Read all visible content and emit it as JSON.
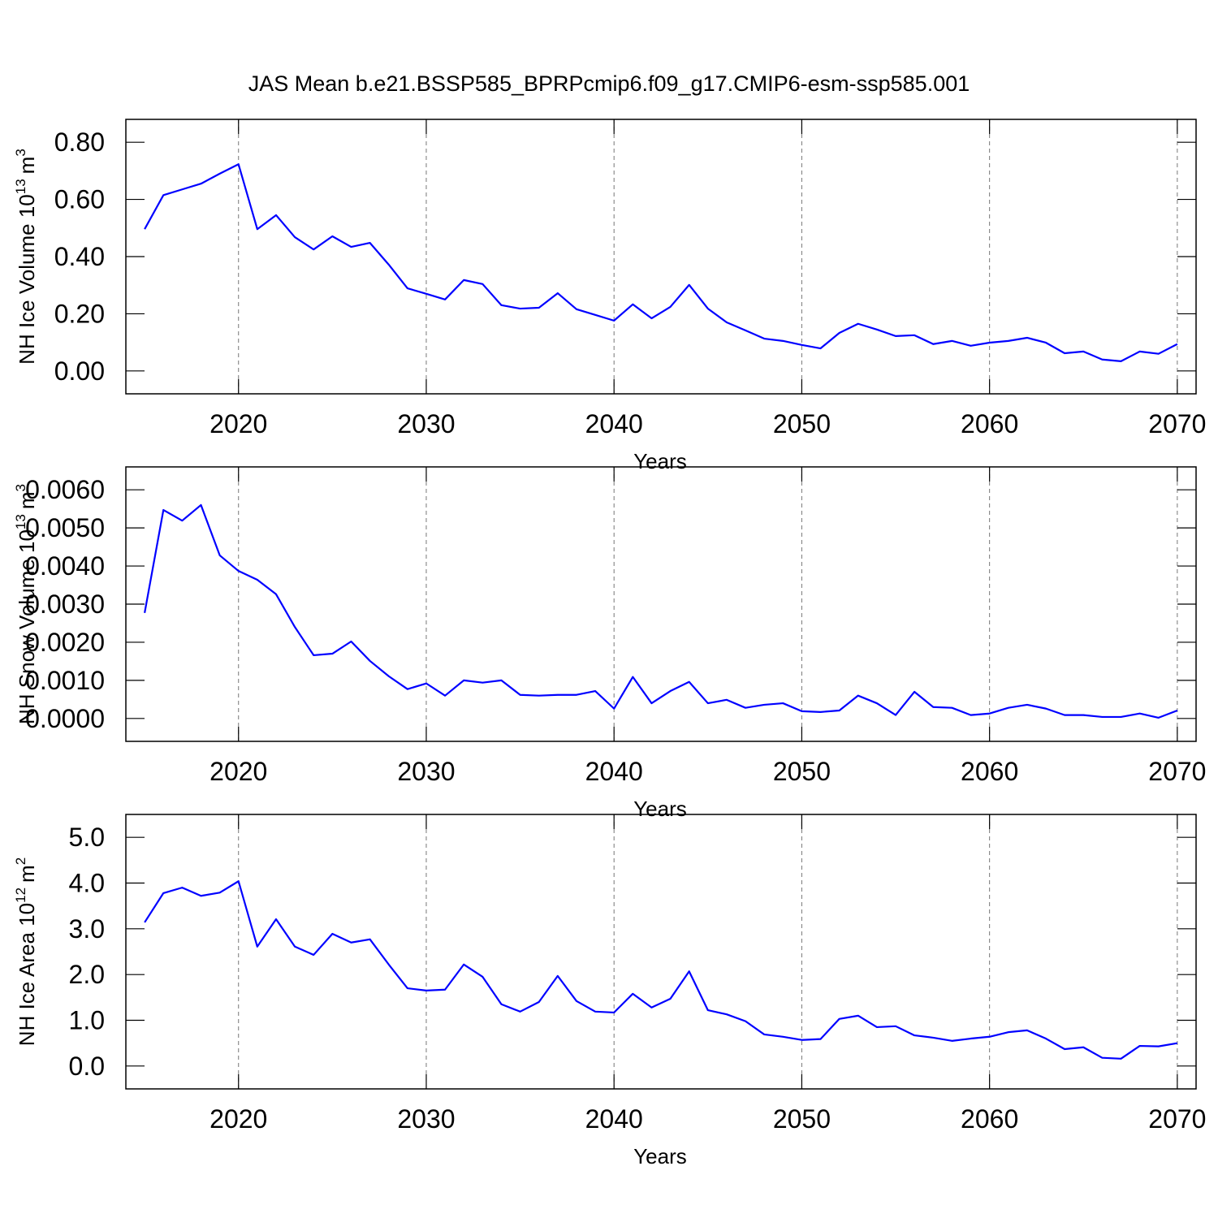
{
  "chart_data": [
    {
      "type": "line",
      "title": "JAS Mean b.e21.BSSP585_BPRPcmip6.f09_g17.CMIP6-esm-ssp585.001",
      "ylabel": "NH Ice Volume 10",
      "ylabel_exp": "13",
      "ylabel_unit": "m",
      "ylabel_unit_exp": "3",
      "xlabel": "Years",
      "x": [
        2015,
        2016,
        2017,
        2018,
        2019,
        2020,
        2021,
        2022,
        2023,
        2024,
        2025,
        2026,
        2027,
        2028,
        2029,
        2030,
        2031,
        2032,
        2033,
        2034,
        2035,
        2036,
        2037,
        2038,
        2039,
        2040,
        2041,
        2042,
        2043,
        2044,
        2045,
        2046,
        2047,
        2048,
        2049,
        2050,
        2051,
        2052,
        2053,
        2054,
        2055,
        2056,
        2057,
        2058,
        2059,
        2060,
        2061,
        2062,
        2063,
        2064,
        2065,
        2066,
        2067,
        2068,
        2069,
        2070
      ],
      "series": [
        {
          "color": "#0000ff",
          "values": [
            0.496,
            0.615,
            0.635,
            0.655,
            0.69,
            0.723,
            0.496,
            0.545,
            0.468,
            0.425,
            0.471,
            0.434,
            0.448,
            0.372,
            0.289,
            0.27,
            0.25,
            0.318,
            0.304,
            0.23,
            0.218,
            0.221,
            0.272,
            0.216,
            0.196,
            0.176,
            0.233,
            0.184,
            0.224,
            0.301,
            0.218,
            0.17,
            0.142,
            0.113,
            0.105,
            0.091,
            0.079,
            0.133,
            0.165,
            0.145,
            0.122,
            0.125,
            0.094,
            0.105,
            0.088,
            0.099,
            0.105,
            0.116,
            0.099,
            0.062,
            0.068,
            0.04,
            0.034,
            0.068,
            0.06,
            0.094
          ]
        }
      ],
      "xlim": [
        2014,
        2071
      ],
      "ylim": [
        -0.08,
        0.88
      ],
      "xticks": [
        2020,
        2030,
        2040,
        2050,
        2060,
        2070
      ],
      "yticks": [
        {
          "value": 0,
          "label": "0.00"
        },
        {
          "value": 0.2,
          "label": "0.20"
        },
        {
          "value": 0.4,
          "label": "0.40"
        },
        {
          "value": 0.6,
          "label": "0.60"
        },
        {
          "value": 0.8,
          "label": "0.80"
        }
      ],
      "grid": true
    },
    {
      "type": "line",
      "ylabel": "NH Snow Volume 10",
      "ylabel_exp": "13",
      "ylabel_unit": "m",
      "ylabel_unit_exp": "3",
      "xlabel": "Years",
      "x": [
        2015,
        2016,
        2017,
        2018,
        2019,
        2020,
        2021,
        2022,
        2023,
        2024,
        2025,
        2026,
        2027,
        2028,
        2029,
        2030,
        2031,
        2032,
        2033,
        2034,
        2035,
        2036,
        2037,
        2038,
        2039,
        2040,
        2041,
        2042,
        2043,
        2044,
        2045,
        2046,
        2047,
        2048,
        2049,
        2050,
        2051,
        2052,
        2053,
        2054,
        2055,
        2056,
        2057,
        2058,
        2059,
        2060,
        2061,
        2062,
        2063,
        2064,
        2065,
        2066,
        2067,
        2068,
        2069,
        2070
      ],
      "series": [
        {
          "color": "#0000ff",
          "values": [
            0.00277,
            0.00547,
            0.00519,
            0.0056,
            0.00428,
            0.00387,
            0.00364,
            0.00326,
            0.0024,
            0.00166,
            0.0017,
            0.00202,
            0.00151,
            0.00111,
            0.00077,
            0.00092,
            0.0006,
            0.001,
            0.00094,
            0.001,
            0.00062,
            0.0006,
            0.00062,
            0.00062,
            0.00072,
            0.00026,
            0.00109,
            0.0004,
            0.00072,
            0.00096,
            0.0004,
            0.00049,
            0.00028,
            0.00036,
            0.0004,
            0.00019,
            0.00017,
            0.00021,
            0.0006,
            0.0004,
            9e-05,
            0.0007,
            0.0003,
            0.00028,
            9e-05,
            0.00013,
            0.00028,
            0.00036,
            0.00026,
            9e-05,
            9e-05,
            4e-05,
            4e-05,
            0.00013,
            2e-05,
            0.00021
          ]
        }
      ],
      "xlim": [
        2014,
        2071
      ],
      "ylim": [
        -0.0006,
        0.0066
      ],
      "xticks": [
        2020,
        2030,
        2040,
        2050,
        2060,
        2070
      ],
      "yticks": [
        {
          "value": 0,
          "label": "0.0000"
        },
        {
          "value": 0.001,
          "label": "0.0010"
        },
        {
          "value": 0.002,
          "label": "0.0020"
        },
        {
          "value": 0.003,
          "label": "0.0030"
        },
        {
          "value": 0.004,
          "label": "0.0040"
        },
        {
          "value": 0.005,
          "label": "0.0050"
        },
        {
          "value": 0.006,
          "label": "0.0060"
        }
      ],
      "grid": true
    },
    {
      "type": "line",
      "ylabel": "NH Ice Area 10",
      "ylabel_exp": "12",
      "ylabel_unit": "m",
      "ylabel_unit_exp": "2",
      "xlabel": "Years",
      "x": [
        2015,
        2016,
        2017,
        2018,
        2019,
        2020,
        2021,
        2022,
        2023,
        2024,
        2025,
        2026,
        2027,
        2028,
        2029,
        2030,
        2031,
        2032,
        2033,
        2034,
        2035,
        2036,
        2037,
        2038,
        2039,
        2040,
        2041,
        2042,
        2043,
        2044,
        2045,
        2046,
        2047,
        2048,
        2049,
        2050,
        2051,
        2052,
        2053,
        2054,
        2055,
        2056,
        2057,
        2058,
        2059,
        2060,
        2061,
        2062,
        2063,
        2064,
        2065,
        2066,
        2067,
        2068,
        2069,
        2070
      ],
      "series": [
        {
          "color": "#0000ff",
          "values": [
            3.14,
            3.78,
            3.9,
            3.72,
            3.79,
            4.04,
            2.61,
            3.21,
            2.61,
            2.43,
            2.89,
            2.7,
            2.77,
            2.22,
            1.7,
            1.65,
            1.67,
            2.22,
            1.95,
            1.35,
            1.19,
            1.4,
            1.97,
            1.42,
            1.19,
            1.17,
            1.58,
            1.28,
            1.47,
            2.07,
            1.22,
            1.13,
            0.98,
            0.69,
            0.64,
            0.57,
            0.59,
            1.03,
            1.1,
            0.85,
            0.87,
            0.67,
            0.62,
            0.55,
            0.6,
            0.64,
            0.74,
            0.78,
            0.6,
            0.37,
            0.41,
            0.18,
            0.16,
            0.44,
            0.43,
            0.5
          ]
        }
      ],
      "xlim": [
        2014,
        2071
      ],
      "ylim": [
        -0.5,
        5.5
      ],
      "xticks": [
        2020,
        2030,
        2040,
        2050,
        2060,
        2070
      ],
      "yticks": [
        {
          "value": 0,
          "label": "0.0"
        },
        {
          "value": 1,
          "label": "1.0"
        },
        {
          "value": 2,
          "label": "2.0"
        },
        {
          "value": 3,
          "label": "3.0"
        },
        {
          "value": 4,
          "label": "4.0"
        },
        {
          "value": 5,
          "label": "5.0"
        }
      ],
      "grid": true
    }
  ]
}
